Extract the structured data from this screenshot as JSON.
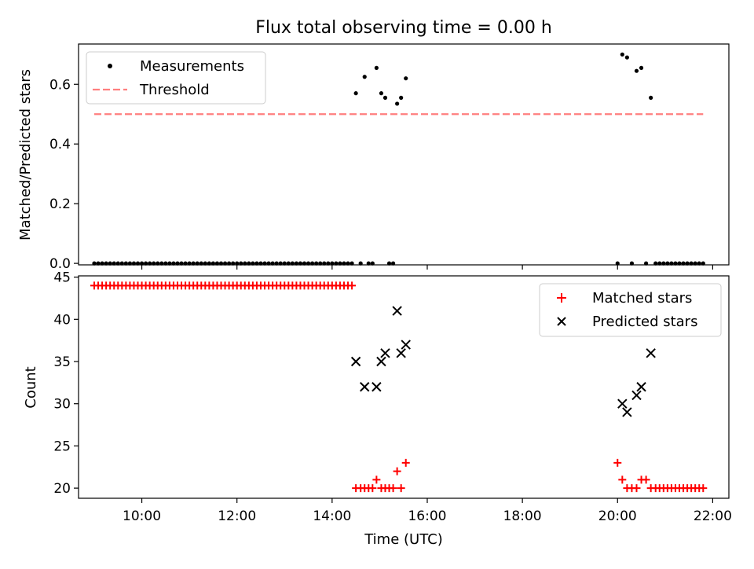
{
  "figure": {
    "title": "Flux total observing time = 0.00 h",
    "xlabel": "Time (UTC)",
    "x_tick_labels": [
      "10:00",
      "12:00",
      "14:00",
      "16:00",
      "18:00",
      "20:00",
      "22:00"
    ]
  },
  "chart_data": [
    {
      "type": "scatter",
      "panel": "top",
      "ylabel": "Matched/Predicted stars",
      "xlim": [
        "09:00",
        "22:00"
      ],
      "ylim": [
        0,
        0.72
      ],
      "y_ticks": [
        0.0,
        0.2,
        0.4,
        0.6
      ],
      "y_tick_labels": [
        "0.0",
        "0.2",
        "0.4",
        "0.6"
      ],
      "legend_position": "top-left",
      "series": [
        {
          "name": "Measurements",
          "marker": "dot",
          "color": "#000000",
          "points": [
            [
              "09:00",
              0
            ],
            [
              "09:05",
              0
            ],
            [
              "09:10",
              0
            ],
            [
              "09:15",
              0
            ],
            [
              "09:20",
              0
            ],
            [
              "09:25",
              0
            ],
            [
              "09:30",
              0
            ],
            [
              "09:35",
              0
            ],
            [
              "09:40",
              0
            ],
            [
              "09:45",
              0
            ],
            [
              "09:50",
              0
            ],
            [
              "09:55",
              0
            ],
            [
              "10:00",
              0
            ],
            [
              "10:05",
              0
            ],
            [
              "10:10",
              0
            ],
            [
              "10:15",
              0
            ],
            [
              "10:20",
              0
            ],
            [
              "10:25",
              0
            ],
            [
              "10:30",
              0
            ],
            [
              "10:35",
              0
            ],
            [
              "10:40",
              0
            ],
            [
              "10:45",
              0
            ],
            [
              "10:50",
              0
            ],
            [
              "10:55",
              0
            ],
            [
              "11:00",
              0
            ],
            [
              "11:05",
              0
            ],
            [
              "11:10",
              0
            ],
            [
              "11:15",
              0
            ],
            [
              "11:20",
              0
            ],
            [
              "11:25",
              0
            ],
            [
              "11:30",
              0
            ],
            [
              "11:35",
              0
            ],
            [
              "11:40",
              0
            ],
            [
              "11:45",
              0
            ],
            [
              "11:50",
              0
            ],
            [
              "11:55",
              0
            ],
            [
              "12:00",
              0
            ],
            [
              "12:05",
              0
            ],
            [
              "12:10",
              0
            ],
            [
              "12:15",
              0
            ],
            [
              "12:20",
              0
            ],
            [
              "12:25",
              0
            ],
            [
              "12:30",
              0
            ],
            [
              "12:35",
              0
            ],
            [
              "12:40",
              0
            ],
            [
              "12:45",
              0
            ],
            [
              "12:50",
              0
            ],
            [
              "12:55",
              0
            ],
            [
              "13:00",
              0
            ],
            [
              "13:05",
              0
            ],
            [
              "13:10",
              0
            ],
            [
              "13:15",
              0
            ],
            [
              "13:20",
              0
            ],
            [
              "13:25",
              0
            ],
            [
              "13:30",
              0
            ],
            [
              "13:35",
              0
            ],
            [
              "13:40",
              0
            ],
            [
              "13:45",
              0
            ],
            [
              "13:50",
              0
            ],
            [
              "13:55",
              0
            ],
            [
              "14:00",
              0
            ],
            [
              "14:05",
              0
            ],
            [
              "14:10",
              0
            ],
            [
              "14:15",
              0
            ],
            [
              "14:20",
              0
            ],
            [
              "14:25",
              0
            ],
            [
              "14:30",
              0.57
            ],
            [
              "14:36",
              0
            ],
            [
              "14:41",
              0.625
            ],
            [
              "14:46",
              0
            ],
            [
              "14:51",
              0
            ],
            [
              "14:56",
              0.655
            ],
            [
              "15:02",
              0.57
            ],
            [
              "15:07",
              0.555
            ],
            [
              "15:12",
              0
            ],
            [
              "15:17",
              0
            ],
            [
              "15:22",
              0.535
            ],
            [
              "15:27",
              0.555
            ],
            [
              "15:33",
              0.62
            ],
            [
              "20:00",
              0
            ],
            [
              "20:06",
              0.7
            ],
            [
              "20:12",
              0.69
            ],
            [
              "20:18",
              0
            ],
            [
              "20:24",
              0.645
            ],
            [
              "20:30",
              0.655
            ],
            [
              "20:36",
              0
            ],
            [
              "20:42",
              0.555
            ],
            [
              "20:48",
              0
            ],
            [
              "20:53",
              0
            ],
            [
              "20:58",
              0
            ],
            [
              "21:03",
              0
            ],
            [
              "21:08",
              0
            ],
            [
              "21:13",
              0
            ],
            [
              "21:18",
              0
            ],
            [
              "21:23",
              0
            ],
            [
              "21:28",
              0
            ],
            [
              "21:33",
              0
            ],
            [
              "21:38",
              0
            ],
            [
              "21:43",
              0
            ],
            [
              "21:48",
              0
            ]
          ]
        },
        {
          "name": "Threshold",
          "style": "dashed-line",
          "color": "#ff7f7f",
          "points": [
            [
              "09:00",
              0.5
            ],
            [
              "21:48",
              0.5
            ]
          ]
        }
      ]
    },
    {
      "type": "scatter",
      "panel": "bottom",
      "ylabel": "Count",
      "xlabel": "Time (UTC)",
      "xlim": [
        "09:00",
        "22:00"
      ],
      "ylim": [
        18.8,
        45
      ],
      "y_ticks": [
        20,
        25,
        30,
        35,
        40,
        45
      ],
      "y_tick_labels": [
        "20",
        "25",
        "30",
        "35",
        "40",
        "45"
      ],
      "legend_position": "top-right",
      "series": [
        {
          "name": "Matched stars",
          "marker": "plus",
          "color": "#ff0000",
          "points": [
            [
              "09:00",
              44
            ],
            [
              "09:05",
              44
            ],
            [
              "09:10",
              44
            ],
            [
              "09:15",
              44
            ],
            [
              "09:20",
              44
            ],
            [
              "09:25",
              44
            ],
            [
              "09:30",
              44
            ],
            [
              "09:35",
              44
            ],
            [
              "09:40",
              44
            ],
            [
              "09:45",
              44
            ],
            [
              "09:50",
              44
            ],
            [
              "09:55",
              44
            ],
            [
              "10:00",
              44
            ],
            [
              "10:05",
              44
            ],
            [
              "10:10",
              44
            ],
            [
              "10:15",
              44
            ],
            [
              "10:20",
              44
            ],
            [
              "10:25",
              44
            ],
            [
              "10:30",
              44
            ],
            [
              "10:35",
              44
            ],
            [
              "10:40",
              44
            ],
            [
              "10:45",
              44
            ],
            [
              "10:50",
              44
            ],
            [
              "10:55",
              44
            ],
            [
              "11:00",
              44
            ],
            [
              "11:05",
              44
            ],
            [
              "11:10",
              44
            ],
            [
              "11:15",
              44
            ],
            [
              "11:20",
              44
            ],
            [
              "11:25",
              44
            ],
            [
              "11:30",
              44
            ],
            [
              "11:35",
              44
            ],
            [
              "11:40",
              44
            ],
            [
              "11:45",
              44
            ],
            [
              "11:50",
              44
            ],
            [
              "11:55",
              44
            ],
            [
              "12:00",
              44
            ],
            [
              "12:05",
              44
            ],
            [
              "12:10",
              44
            ],
            [
              "12:15",
              44
            ],
            [
              "12:20",
              44
            ],
            [
              "12:25",
              44
            ],
            [
              "12:30",
              44
            ],
            [
              "12:35",
              44
            ],
            [
              "12:40",
              44
            ],
            [
              "12:45",
              44
            ],
            [
              "12:50",
              44
            ],
            [
              "12:55",
              44
            ],
            [
              "13:00",
              44
            ],
            [
              "13:05",
              44
            ],
            [
              "13:10",
              44
            ],
            [
              "13:15",
              44
            ],
            [
              "13:20",
              44
            ],
            [
              "13:25",
              44
            ],
            [
              "13:30",
              44
            ],
            [
              "13:35",
              44
            ],
            [
              "13:40",
              44
            ],
            [
              "13:45",
              44
            ],
            [
              "13:50",
              44
            ],
            [
              "13:55",
              44
            ],
            [
              "14:00",
              44
            ],
            [
              "14:05",
              44
            ],
            [
              "14:10",
              44
            ],
            [
              "14:15",
              44
            ],
            [
              "14:20",
              44
            ],
            [
              "14:25",
              44
            ],
            [
              "14:30",
              20
            ],
            [
              "14:36",
              20
            ],
            [
              "14:41",
              20
            ],
            [
              "14:46",
              20
            ],
            [
              "14:51",
              20
            ],
            [
              "14:56",
              21
            ],
            [
              "15:02",
              20
            ],
            [
              "15:07",
              20
            ],
            [
              "15:12",
              20
            ],
            [
              "15:17",
              20
            ],
            [
              "15:22",
              22
            ],
            [
              "15:27",
              20
            ],
            [
              "15:33",
              23
            ],
            [
              "20:00",
              23
            ],
            [
              "20:06",
              21
            ],
            [
              "20:12",
              20
            ],
            [
              "20:18",
              20
            ],
            [
              "20:24",
              20
            ],
            [
              "20:30",
              21
            ],
            [
              "20:36",
              21
            ],
            [
              "20:42",
              20
            ],
            [
              "20:48",
              20
            ],
            [
              "20:53",
              20
            ],
            [
              "20:58",
              20
            ],
            [
              "21:03",
              20
            ],
            [
              "21:08",
              20
            ],
            [
              "21:13",
              20
            ],
            [
              "21:18",
              20
            ],
            [
              "21:23",
              20
            ],
            [
              "21:28",
              20
            ],
            [
              "21:33",
              20
            ],
            [
              "21:38",
              20
            ],
            [
              "21:43",
              20
            ],
            [
              "21:48",
              20
            ]
          ]
        },
        {
          "name": "Predicted stars",
          "marker": "x",
          "color": "#000000",
          "points": [
            [
              "14:30",
              35
            ],
            [
              "14:41",
              32
            ],
            [
              "14:56",
              32
            ],
            [
              "15:02",
              35
            ],
            [
              "15:07",
              36
            ],
            [
              "15:22",
              41
            ],
            [
              "15:27",
              36
            ],
            [
              "15:33",
              37
            ],
            [
              "20:06",
              30
            ],
            [
              "20:12",
              29
            ],
            [
              "20:24",
              31
            ],
            [
              "20:30",
              32
            ],
            [
              "20:42",
              36
            ]
          ]
        }
      ]
    }
  ]
}
